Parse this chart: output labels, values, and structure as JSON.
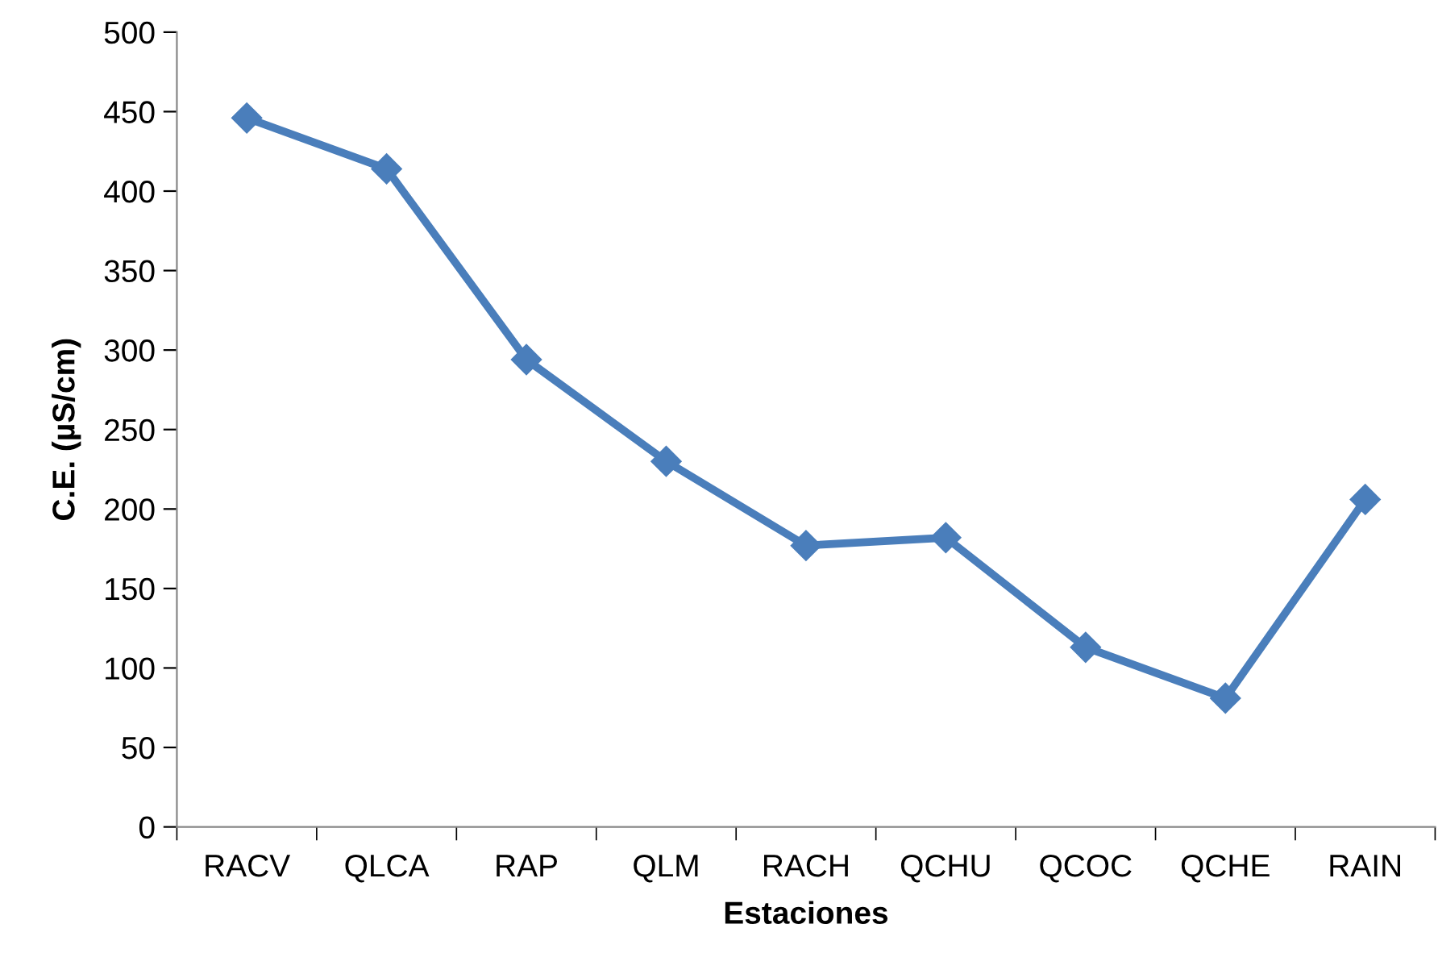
{
  "chart_data": {
    "type": "line",
    "xlabel": "Estaciones",
    "ylabel": "C.E. (µS/cm)",
    "categories": [
      "RACV",
      "QLCA",
      "RAP",
      "QLM",
      "RACH",
      "QCHU",
      "QCOC",
      "QCHE",
      "RAIN"
    ],
    "series": [
      {
        "color": "#4a7ebb",
        "values": [
          446,
          414,
          294,
          230,
          177,
          182,
          113,
          81,
          206
        ]
      }
    ],
    "ylim": [
      0,
      500
    ],
    "yticks": [
      0,
      50,
      100,
      150,
      200,
      250,
      300,
      350,
      400,
      450,
      500
    ],
    "grid": false,
    "marker": "diamond",
    "line_style": "solid"
  }
}
